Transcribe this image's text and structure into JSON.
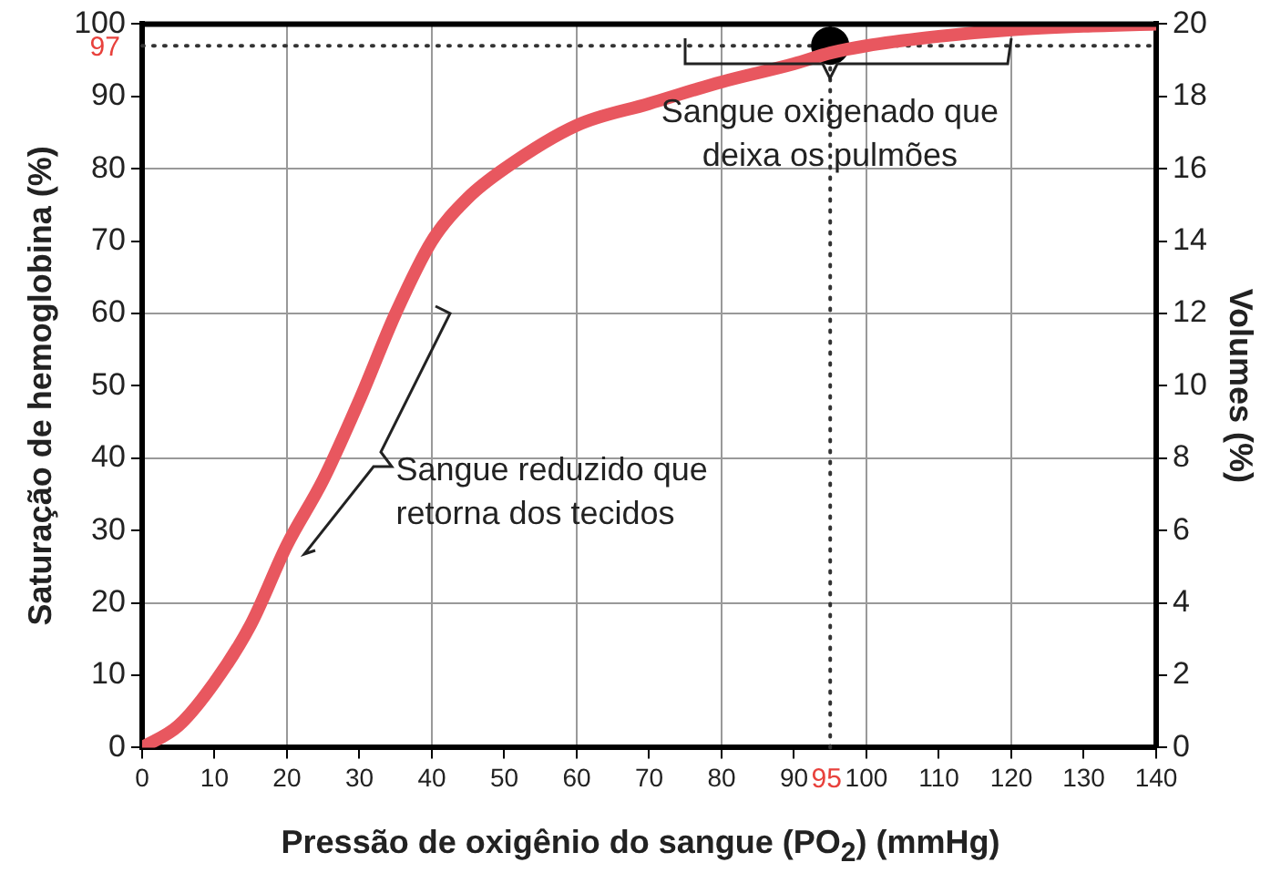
{
  "chart_data": {
    "type": "line",
    "xlabel": "Pressão de oxigênio do sangue (PO$_{2}$) (mmHg)",
    "ylabel": "Saturação de hemoglobina (%)",
    "y2label": "Volumes (%)",
    "series": [
      {
        "color": "#e8575f",
        "x": [
          0,
          5,
          10,
          15,
          20,
          25,
          30,
          35,
          40,
          45,
          50,
          60,
          70,
          80,
          90,
          95,
          100,
          110,
          120,
          130,
          140
        ],
        "values": [
          0,
          3,
          9,
          17,
          28,
          37,
          48,
          60,
          70,
          76,
          80,
          86,
          89,
          92,
          94.5,
          96,
          97,
          98.3,
          99.2,
          99.7,
          100
        ],
        "marker": "none"
      },
      {
        "type": "scatter",
        "color": "#000000",
        "x": [
          95
        ],
        "values": [
          97
        ],
        "marker": "circle"
      }
    ],
    "xlim": [
      0,
      140
    ],
    "xticks": [
      0,
      10,
      20,
      30,
      40,
      50,
      60,
      70,
      80,
      90,
      100,
      110,
      120,
      130,
      140
    ],
    "ylim": [
      0,
      100
    ],
    "yticks": [
      0,
      10,
      20,
      30,
      40,
      50,
      60,
      70,
      80,
      90,
      100
    ],
    "y2lim": [
      0,
      20
    ],
    "y2ticks": [
      0,
      2,
      4,
      6,
      8,
      10,
      12,
      14,
      16,
      18,
      20
    ],
    "ref_lines": [
      {
        "axis": "x",
        "value": 95,
        "label": "95",
        "color": "#333333",
        "line_style": "dotted"
      },
      {
        "axis": "y",
        "value": 97,
        "label": "97",
        "color": "#333333",
        "line_style": "dotted"
      }
    ],
    "annotations": [
      {
        "text": "Sangue oxigenado que deixa os pulmões",
        "x": 100,
        "y": 97
      },
      {
        "text": "Sangue reduzido que retorna dos tecidos",
        "x": 30,
        "y": 50
      }
    ],
    "grid": true,
    "legend": false
  }
}
